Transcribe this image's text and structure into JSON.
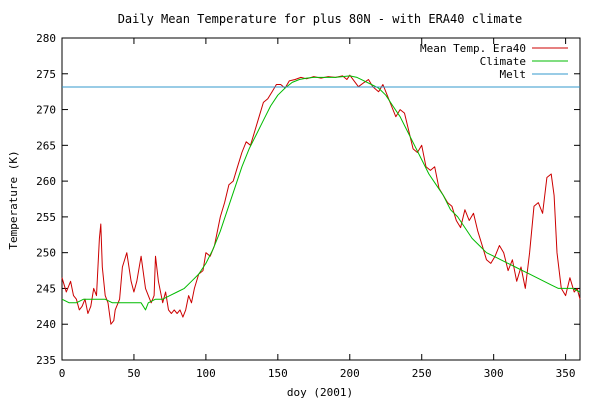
{
  "chart_data": {
    "type": "line",
    "title": "Daily Mean Temperature for plus 80N - with ERA40 climate",
    "xlabel": "doy (2001)",
    "ylabel": "Temperature (K)",
    "xlim": [
      0,
      360
    ],
    "ylim": [
      235,
      280
    ],
    "x_ticks": [
      0,
      50,
      100,
      150,
      200,
      250,
      300,
      350
    ],
    "y_ticks": [
      235,
      240,
      245,
      250,
      255,
      260,
      265,
      270,
      275,
      280
    ],
    "grid": false,
    "legend_position": "top-right",
    "series": [
      {
        "name": "Mean Temp. Era40",
        "color": "#cc0000",
        "x": [
          0,
          3,
          6,
          8,
          10,
          12,
          14,
          16,
          18,
          20,
          22,
          24,
          26,
          27,
          28,
          30,
          32,
          34,
          36,
          37,
          40,
          42,
          45,
          48,
          50,
          52,
          55,
          58,
          60,
          62,
          64,
          65,
          67,
          70,
          72,
          74,
          76,
          78,
          80,
          82,
          84,
          86,
          88,
          90,
          92,
          95,
          98,
          100,
          103,
          106,
          110,
          113,
          116,
          119,
          122,
          125,
          128,
          131,
          134,
          137,
          140,
          143,
          146,
          149,
          152,
          155,
          158,
          162,
          166,
          170,
          175,
          180,
          185,
          190,
          195,
          198,
          200,
          203,
          206,
          210,
          213,
          216,
          220,
          223,
          226,
          229,
          232,
          235,
          238,
          241,
          244,
          247,
          250,
          253,
          256,
          259,
          262,
          265,
          268,
          271,
          274,
          277,
          280,
          283,
          286,
          289,
          292,
          295,
          298,
          301,
          304,
          307,
          310,
          313,
          316,
          319,
          322,
          325,
          328,
          331,
          334,
          337,
          340,
          342,
          344,
          347,
          350,
          353,
          356,
          358,
          360
        ],
        "values": [
          246.5,
          244.5,
          246.0,
          244.0,
          243.5,
          242.0,
          242.5,
          243.5,
          241.5,
          242.5,
          245.0,
          244.0,
          252.0,
          254.0,
          248.0,
          244.0,
          243.0,
          240.0,
          240.5,
          242.0,
          243.5,
          248.0,
          250.0,
          246.0,
          244.5,
          246.0,
          249.5,
          245.0,
          244.0,
          243.0,
          244.0,
          249.5,
          246.0,
          243.0,
          244.5,
          242.0,
          241.5,
          242.0,
          241.5,
          242.0,
          241.0,
          242.0,
          244.0,
          243.0,
          245.0,
          247.0,
          247.5,
          250.0,
          249.5,
          251.0,
          255.0,
          257.0,
          259.5,
          260.0,
          262.0,
          264.0,
          265.5,
          265.0,
          267.0,
          269.0,
          271.0,
          271.5,
          272.5,
          273.5,
          273.5,
          273.0,
          274.0,
          274.2,
          274.5,
          274.3,
          274.6,
          274.4,
          274.6,
          274.5,
          274.7,
          274.2,
          274.8,
          274.0,
          273.2,
          273.8,
          274.2,
          273.2,
          272.5,
          273.5,
          272.0,
          270.5,
          269.0,
          270.0,
          269.5,
          267.0,
          264.5,
          264.0,
          265.0,
          262.0,
          261.5,
          262.0,
          259.0,
          258.0,
          257.0,
          256.5,
          254.5,
          253.5,
          256.0,
          254.5,
          255.5,
          253.0,
          251.0,
          249.0,
          248.5,
          249.5,
          251.0,
          250.0,
          247.5,
          249.0,
          246.0,
          248.0,
          245.0,
          250.0,
          256.5,
          257.0,
          255.5,
          260.5,
          261.0,
          258.0,
          250.0,
          245.0,
          244.0,
          246.5,
          244.5,
          245.0,
          243.5
        ]
      },
      {
        "name": "Climate",
        "color": "#00bb00",
        "x": [
          0,
          5,
          10,
          15,
          20,
          25,
          30,
          35,
          40,
          45,
          50,
          55,
          58,
          60,
          65,
          70,
          75,
          80,
          85,
          90,
          95,
          100,
          105,
          110,
          115,
          120,
          125,
          130,
          135,
          140,
          145,
          150,
          155,
          160,
          165,
          170,
          175,
          180,
          185,
          190,
          195,
          200,
          205,
          210,
          215,
          220,
          225,
          230,
          235,
          240,
          245,
          250,
          255,
          260,
          265,
          270,
          275,
          280,
          285,
          290,
          295,
          300,
          305,
          310,
          315,
          320,
          325,
          330,
          335,
          340,
          345,
          350,
          355,
          360
        ],
        "values": [
          243.5,
          243.0,
          243.0,
          243.5,
          243.5,
          243.5,
          243.5,
          243.0,
          243.0,
          243.0,
          243.0,
          243.0,
          242.0,
          243.0,
          243.5,
          243.5,
          244.0,
          244.5,
          245.0,
          246.0,
          247.0,
          248.5,
          250.5,
          253.0,
          256.0,
          259.0,
          262.0,
          264.5,
          266.5,
          268.5,
          270.5,
          272.0,
          273.0,
          273.8,
          274.2,
          274.4,
          274.5,
          274.5,
          274.5,
          274.5,
          274.6,
          274.7,
          274.5,
          274.0,
          273.5,
          273.0,
          272.0,
          270.5,
          269.0,
          267.0,
          265.0,
          263.0,
          261.0,
          259.5,
          258.0,
          256.0,
          255.0,
          253.5,
          252.0,
          251.0,
          250.0,
          249.5,
          249.0,
          248.5,
          248.0,
          247.5,
          247.0,
          246.5,
          246.0,
          245.5,
          245.0,
          245.0,
          245.0,
          244.5
        ]
      },
      {
        "name": "Melt",
        "color": "#3399cc",
        "x": [
          0,
          360
        ],
        "values": [
          273.15,
          273.15
        ]
      }
    ]
  }
}
